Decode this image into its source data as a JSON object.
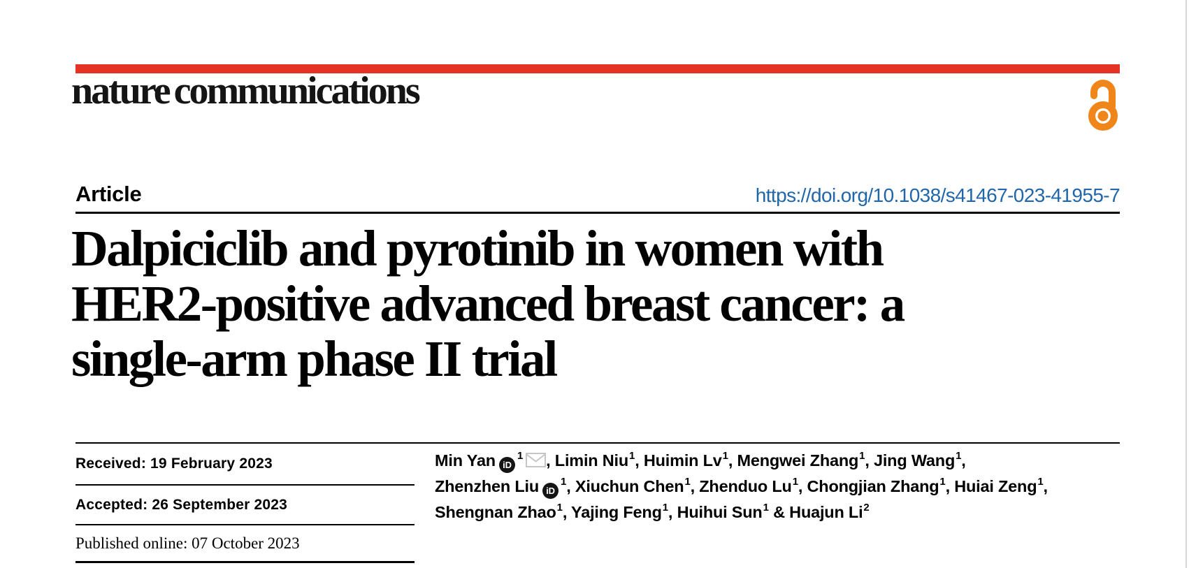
{
  "header": {
    "logo_text": "nature communications",
    "accent_color": "#e53226",
    "open_access_color": "#f08519"
  },
  "article_bar": {
    "type_label": "Article",
    "doi_url": "https://doi.org/10.1038/s41467-023-41955-7",
    "link_color": "#2066a8"
  },
  "title": {
    "line1": "Dalpiciclib and pyrotinib in women with",
    "line2": "HER2-positive advanced breast cancer: a",
    "line3": "single-arm phase II trial"
  },
  "history": {
    "received": "Received: 19 February 2023",
    "accepted": "Accepted: 26 September 2023",
    "published": "Published online: 07 October 2023"
  },
  "icons": {
    "orcid_glyph": "iD",
    "email_icon": "envelope",
    "open_access_icon": "open padlock"
  },
  "authors": {
    "lines": [
      [
        {
          "name": "Min Yan",
          "orcid": true,
          "sup": "1",
          "email": true,
          "sep": ", "
        },
        {
          "name": "Limin Niu",
          "sup": "1",
          "sep": ", "
        },
        {
          "name": "Huimin Lv",
          "sup": "1",
          "sep": ", "
        },
        {
          "name": "Mengwei Zhang",
          "sup": "1",
          "sep": ", "
        },
        {
          "name": "Jing Wang",
          "sup": "1",
          "sep": ","
        }
      ],
      [
        {
          "name": "Zhenzhen Liu",
          "orcid": true,
          "sup": "1",
          "sep": ", "
        },
        {
          "name": "Xiuchun Chen",
          "sup": "1",
          "sep": ", "
        },
        {
          "name": "Zhenduo Lu",
          "sup": "1",
          "sep": ", "
        },
        {
          "name": "Chongjian Zhang",
          "sup": "1",
          "sep": ", "
        },
        {
          "name": "Huiai Zeng",
          "sup": "1",
          "sep": ","
        }
      ],
      [
        {
          "name": "Shengnan Zhao",
          "sup": "1",
          "sep": ", "
        },
        {
          "name": "Yajing Feng",
          "sup": "1",
          "sep": ", "
        },
        {
          "name": "Huihui Sun",
          "sup": "1",
          "sep": " & "
        },
        {
          "name": "Huajun Li",
          "sup": "2",
          "sep": ""
        }
      ]
    ]
  }
}
